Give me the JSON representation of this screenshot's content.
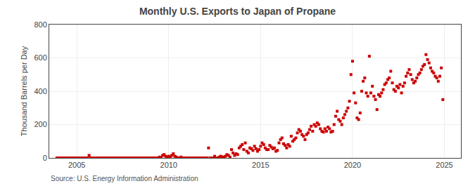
{
  "chart_data": {
    "type": "scatter",
    "title": "Monthly U.S. Exports to Japan of Propane",
    "ylabel": "Thousand Barrels per Day",
    "annotations": [
      "Source: U.S. Energy Information Administration"
    ],
    "color": "#cc0000",
    "marker": "square",
    "grid": true,
    "xlim": [
      2003.5,
      2025.9
    ],
    "xticks": [
      2005,
      2010,
      2015,
      2020,
      2025
    ],
    "ylim": [
      0,
      800
    ],
    "yticks": [
      0,
      200,
      400,
      600,
      800
    ],
    "x": [
      2003.917,
      2004.0,
      2004.083,
      2004.167,
      2004.25,
      2004.333,
      2004.417,
      2004.5,
      2004.583,
      2004.667,
      2004.75,
      2004.833,
      2004.917,
      2005.0,
      2005.083,
      2005.167,
      2005.25,
      2005.333,
      2005.417,
      2005.5,
      2005.583,
      2005.667,
      2005.75,
      2005.833,
      2005.917,
      2006.0,
      2006.083,
      2006.167,
      2006.25,
      2006.333,
      2006.417,
      2006.5,
      2006.583,
      2006.667,
      2006.75,
      2006.833,
      2006.917,
      2007.0,
      2007.083,
      2007.167,
      2007.25,
      2007.333,
      2007.417,
      2007.5,
      2007.583,
      2007.667,
      2007.75,
      2007.833,
      2007.917,
      2008.0,
      2008.083,
      2008.167,
      2008.25,
      2008.333,
      2008.417,
      2008.5,
      2008.583,
      2008.667,
      2008.75,
      2008.833,
      2008.917,
      2009.0,
      2009.083,
      2009.167,
      2009.25,
      2009.333,
      2009.417,
      2009.5,
      2009.583,
      2009.667,
      2009.75,
      2009.833,
      2009.917,
      2010.0,
      2010.083,
      2010.167,
      2010.25,
      2010.333,
      2010.417,
      2010.5,
      2010.583,
      2010.667,
      2010.75,
      2010.833,
      2010.917,
      2011.0,
      2011.083,
      2011.167,
      2011.25,
      2011.333,
      2011.417,
      2011.5,
      2011.583,
      2011.667,
      2011.75,
      2011.833,
      2011.917,
      2012.0,
      2012.083,
      2012.167,
      2012.25,
      2012.333,
      2012.417,
      2012.5,
      2012.583,
      2012.667,
      2012.75,
      2012.833,
      2012.917,
      2013.0,
      2013.083,
      2013.167,
      2013.25,
      2013.333,
      2013.417,
      2013.5,
      2013.583,
      2013.667,
      2013.75,
      2013.833,
      2013.917,
      2014.0,
      2014.083,
      2014.167,
      2014.25,
      2014.333,
      2014.417,
      2014.5,
      2014.583,
      2014.667,
      2014.75,
      2014.833,
      2014.917,
      2015.0,
      2015.083,
      2015.167,
      2015.25,
      2015.333,
      2015.417,
      2015.5,
      2015.583,
      2015.667,
      2015.75,
      2015.833,
      2015.917,
      2016.0,
      2016.083,
      2016.167,
      2016.25,
      2016.333,
      2016.417,
      2016.5,
      2016.583,
      2016.667,
      2016.75,
      2016.833,
      2016.917,
      2017.0,
      2017.083,
      2017.167,
      2017.25,
      2017.333,
      2017.417,
      2017.5,
      2017.583,
      2017.667,
      2017.75,
      2017.833,
      2017.917,
      2018.0,
      2018.083,
      2018.167,
      2018.25,
      2018.333,
      2018.417,
      2018.5,
      2018.583,
      2018.667,
      2018.75,
      2018.833,
      2018.917,
      2019.0,
      2019.083,
      2019.167,
      2019.25,
      2019.333,
      2019.417,
      2019.5,
      2019.583,
      2019.667,
      2019.75,
      2019.833,
      2019.917,
      2020.0,
      2020.083,
      2020.167,
      2020.25,
      2020.333,
      2020.417,
      2020.5,
      2020.583,
      2020.667,
      2020.75,
      2020.833,
      2020.917,
      2021.0,
      2021.083,
      2021.167,
      2021.25,
      2021.333,
      2021.417,
      2021.5,
      2021.583,
      2021.667,
      2021.75,
      2021.833,
      2021.917,
      2022.0,
      2022.083,
      2022.167,
      2022.25,
      2022.333,
      2022.417,
      2022.5,
      2022.583,
      2022.667,
      2022.75,
      2022.833,
      2022.917,
      2023.0,
      2023.083,
      2023.167,
      2023.25,
      2023.333,
      2023.417,
      2023.5,
      2023.583,
      2023.667,
      2023.75,
      2023.833,
      2023.917,
      2024.0,
      2024.083,
      2024.167,
      2024.25,
      2024.333,
      2024.417,
      2024.5,
      2024.583,
      2024.667,
      2024.75,
      2024.833,
      2024.917
    ],
    "values": [
      0,
      0,
      0,
      0,
      0,
      0,
      0,
      0,
      0,
      0,
      0,
      0,
      0,
      0,
      0,
      0,
      0,
      0,
      0,
      0,
      0,
      15,
      0,
      0,
      0,
      0,
      0,
      0,
      0,
      0,
      0,
      0,
      0,
      0,
      0,
      0,
      0,
      0,
      0,
      0,
      0,
      0,
      0,
      0,
      0,
      0,
      0,
      0,
      0,
      0,
      0,
      0,
      0,
      0,
      0,
      0,
      0,
      0,
      0,
      0,
      0,
      0,
      0,
      0,
      0,
      0,
      0,
      5,
      0,
      15,
      20,
      10,
      5,
      10,
      5,
      15,
      25,
      10,
      5,
      0,
      0,
      5,
      0,
      0,
      0,
      0,
      0,
      0,
      0,
      0,
      0,
      0,
      0,
      0,
      0,
      0,
      0,
      0,
      0,
      60,
      0,
      0,
      0,
      10,
      0,
      0,
      5,
      10,
      5,
      5,
      10,
      20,
      15,
      5,
      50,
      30,
      15,
      25,
      20,
      60,
      70,
      80,
      50,
      90,
      40,
      30,
      60,
      55,
      45,
      70,
      55,
      40,
      50,
      70,
      90,
      80,
      60,
      50,
      50,
      75,
      65,
      55,
      60,
      40,
      45,
      90,
      110,
      120,
      85,
      75,
      60,
      80,
      70,
      130,
      100,
      110,
      120,
      150,
      170,
      160,
      140,
      130,
      110,
      140,
      150,
      170,
      190,
      160,
      200,
      190,
      210,
      200,
      175,
      160,
      155,
      175,
      160,
      185,
      175,
      155,
      160,
      200,
      250,
      280,
      230,
      220,
      200,
      240,
      260,
      280,
      300,
      340,
      500,
      580,
      390,
      330,
      240,
      230,
      270,
      400,
      460,
      480,
      390,
      370,
      610,
      390,
      430,
      370,
      350,
      290,
      380,
      370,
      390,
      410,
      440,
      450,
      470,
      480,
      520,
      450,
      410,
      400,
      430,
      420,
      440,
      390,
      430,
      450,
      490,
      510,
      530,
      500,
      470,
      450,
      460,
      480,
      500,
      510,
      530,
      550,
      560,
      620,
      590,
      570,
      540,
      520,
      510,
      490,
      480,
      460,
      490,
      540,
      350
    ]
  }
}
